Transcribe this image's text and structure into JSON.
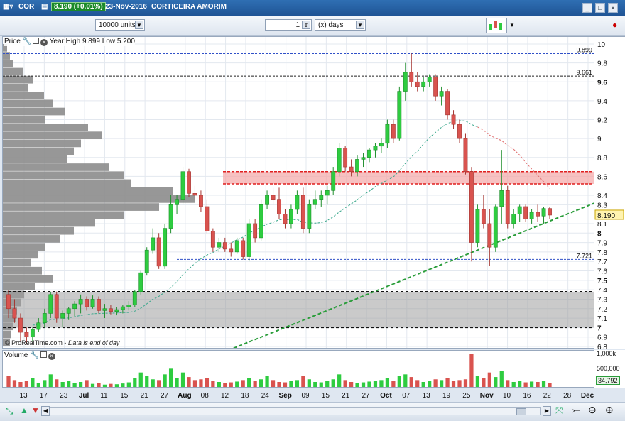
{
  "window": {
    "symbol": "COR",
    "price_change": "8.190 (+0.01%)",
    "date": "23-Nov-2016",
    "name": "CORTICEIRA AMORIM"
  },
  "toolbar": {
    "units": "10000 units",
    "period_count": "1",
    "period_unit": "(x) days"
  },
  "price_panel": {
    "label": "Price",
    "info": "Year:High 9.899 Low 5.200",
    "copyright": "© ProRealTime.com",
    "note": "Data is end of day",
    "last_price": "8.190",
    "level_high": "9.899",
    "level_mid": "9.661",
    "level_low": "7.721"
  },
  "volume_panel": {
    "label": "Volume",
    "last_volume": "34,792",
    "ticks": [
      "1,000k",
      "500,000"
    ]
  },
  "colors": {
    "up": "#2ecc40",
    "down": "#d9534f",
    "trendline": "#2a9d3a",
    "resistance_zone": "#f4a6a6",
    "support_zone": "#9e9e9e"
  },
  "chart_data": {
    "type": "candlestick",
    "ylim": [
      6.8,
      10.0
    ],
    "y_ticks": [
      "10",
      "9.8",
      "9.6",
      "9.4",
      "9.2",
      "9",
      "8.8",
      "8.6",
      "8.4",
      "8.3",
      "8.1",
      "8",
      "7.9",
      "7.8",
      "7.7",
      "7.6",
      "7.5",
      "7.4",
      "7.3",
      "7.2",
      "7.1",
      "7",
      "6.9",
      "6.8"
    ],
    "x_ticks": [
      "13",
      "17",
      "23",
      "Jul",
      "11",
      "15",
      "21",
      "27",
      "Aug",
      "08",
      "12",
      "18",
      "24",
      "Sep",
      "09",
      "15",
      "21",
      "27",
      "Oct",
      "07",
      "13",
      "19",
      "25",
      "Nov",
      "10",
      "16",
      "22",
      "28",
      "Dec"
    ],
    "horizontal_levels": [
      9.899,
      9.661,
      7.721,
      7.0,
      7.38
    ],
    "zones": [
      {
        "from": 8.52,
        "to": 8.65,
        "color": "resistance"
      },
      {
        "from": 7.0,
        "to": 7.38,
        "color": "support"
      }
    ],
    "candles": [
      {
        "o": 7.35,
        "h": 7.4,
        "l": 7.1,
        "c": 7.2
      },
      {
        "o": 7.2,
        "h": 7.3,
        "l": 7.05,
        "c": 7.1
      },
      {
        "o": 7.1,
        "h": 7.15,
        "l": 6.85,
        "c": 6.95
      },
      {
        "o": 6.95,
        "h": 7.0,
        "l": 6.82,
        "c": 6.9
      },
      {
        "o": 6.9,
        "h": 7.0,
        "l": 6.85,
        "c": 6.98
      },
      {
        "o": 6.98,
        "h": 7.1,
        "l": 6.95,
        "c": 7.05
      },
      {
        "o": 7.05,
        "h": 7.2,
        "l": 7.0,
        "c": 7.15
      },
      {
        "o": 7.15,
        "h": 7.38,
        "l": 7.1,
        "c": 7.35
      },
      {
        "o": 7.35,
        "h": 7.38,
        "l": 7.05,
        "c": 7.1
      },
      {
        "o": 7.1,
        "h": 7.18,
        "l": 7.0,
        "c": 7.15
      },
      {
        "o": 7.15,
        "h": 7.22,
        "l": 7.08,
        "c": 7.2
      },
      {
        "o": 7.2,
        "h": 7.28,
        "l": 7.12,
        "c": 7.25
      },
      {
        "o": 7.25,
        "h": 7.35,
        "l": 7.15,
        "c": 7.3
      },
      {
        "o": 7.3,
        "h": 7.33,
        "l": 7.18,
        "c": 7.22
      },
      {
        "o": 7.22,
        "h": 7.34,
        "l": 7.2,
        "c": 7.3
      },
      {
        "o": 7.3,
        "h": 7.33,
        "l": 7.15,
        "c": 7.18
      },
      {
        "o": 7.18,
        "h": 7.25,
        "l": 7.1,
        "c": 7.2
      },
      {
        "o": 7.2,
        "h": 7.24,
        "l": 7.14,
        "c": 7.17
      },
      {
        "o": 7.17,
        "h": 7.22,
        "l": 7.13,
        "c": 7.19
      },
      {
        "o": 7.19,
        "h": 7.24,
        "l": 7.15,
        "c": 7.22
      },
      {
        "o": 7.22,
        "h": 7.28,
        "l": 7.18,
        "c": 7.24
      },
      {
        "o": 7.24,
        "h": 7.4,
        "l": 7.22,
        "c": 7.38
      },
      {
        "o": 7.38,
        "h": 7.6,
        "l": 7.35,
        "c": 7.58
      },
      {
        "o": 7.58,
        "h": 7.85,
        "l": 7.55,
        "c": 7.82
      },
      {
        "o": 7.82,
        "h": 8.05,
        "l": 7.78,
        "c": 7.95
      },
      {
        "o": 7.95,
        "h": 8.0,
        "l": 7.62,
        "c": 7.65
      },
      {
        "o": 7.65,
        "h": 8.1,
        "l": 7.62,
        "c": 8.05
      },
      {
        "o": 8.05,
        "h": 8.4,
        "l": 8.0,
        "c": 8.3
      },
      {
        "o": 8.3,
        "h": 8.4,
        "l": 8.2,
        "c": 8.35
      },
      {
        "o": 8.35,
        "h": 8.7,
        "l": 8.3,
        "c": 8.65
      },
      {
        "o": 8.65,
        "h": 8.68,
        "l": 8.38,
        "c": 8.42
      },
      {
        "o": 8.42,
        "h": 8.5,
        "l": 8.35,
        "c": 8.4
      },
      {
        "o": 8.4,
        "h": 8.45,
        "l": 8.22,
        "c": 8.28
      },
      {
        "o": 8.28,
        "h": 8.35,
        "l": 8.0,
        "c": 8.02
      },
      {
        "o": 8.02,
        "h": 8.05,
        "l": 7.8,
        "c": 7.85
      },
      {
        "o": 7.85,
        "h": 7.95,
        "l": 7.8,
        "c": 7.9
      },
      {
        "o": 7.9,
        "h": 7.95,
        "l": 7.8,
        "c": 7.83
      },
      {
        "o": 7.83,
        "h": 7.9,
        "l": 7.75,
        "c": 7.8
      },
      {
        "o": 7.8,
        "h": 7.95,
        "l": 7.78,
        "c": 7.92
      },
      {
        "o": 7.92,
        "h": 7.95,
        "l": 7.72,
        "c": 7.75
      },
      {
        "o": 7.75,
        "h": 8.15,
        "l": 7.7,
        "c": 8.1
      },
      {
        "o": 8.1,
        "h": 8.15,
        "l": 7.9,
        "c": 7.95
      },
      {
        "o": 7.95,
        "h": 8.35,
        "l": 7.92,
        "c": 8.3
      },
      {
        "o": 8.3,
        "h": 8.45,
        "l": 8.25,
        "c": 8.4
      },
      {
        "o": 8.4,
        "h": 8.48,
        "l": 8.3,
        "c": 8.35
      },
      {
        "o": 8.35,
        "h": 8.48,
        "l": 8.15,
        "c": 8.2
      },
      {
        "o": 8.2,
        "h": 8.25,
        "l": 8.05,
        "c": 8.1
      },
      {
        "o": 8.1,
        "h": 8.3,
        "l": 8.05,
        "c": 8.25
      },
      {
        "o": 8.25,
        "h": 8.45,
        "l": 8.2,
        "c": 8.4
      },
      {
        "o": 8.4,
        "h": 8.48,
        "l": 8.0,
        "c": 8.05
      },
      {
        "o": 8.05,
        "h": 8.35,
        "l": 8.0,
        "c": 8.3
      },
      {
        "o": 8.3,
        "h": 8.45,
        "l": 8.25,
        "c": 8.35
      },
      {
        "o": 8.35,
        "h": 8.45,
        "l": 8.28,
        "c": 8.4
      },
      {
        "o": 8.4,
        "h": 8.5,
        "l": 8.3,
        "c": 8.45
      },
      {
        "o": 8.45,
        "h": 8.7,
        "l": 8.4,
        "c": 8.65
      },
      {
        "o": 8.65,
        "h": 8.95,
        "l": 8.6,
        "c": 8.9
      },
      {
        "o": 8.9,
        "h": 8.92,
        "l": 8.65,
        "c": 8.7
      },
      {
        "o": 8.7,
        "h": 8.78,
        "l": 8.6,
        "c": 8.65
      },
      {
        "o": 8.65,
        "h": 8.82,
        "l": 8.6,
        "c": 8.78
      },
      {
        "o": 8.78,
        "h": 8.85,
        "l": 8.7,
        "c": 8.8
      },
      {
        "o": 8.8,
        "h": 8.9,
        "l": 8.75,
        "c": 8.88
      },
      {
        "o": 8.88,
        "h": 8.95,
        "l": 8.8,
        "c": 8.92
      },
      {
        "o": 8.92,
        "h": 9.0,
        "l": 8.85,
        "c": 8.95
      },
      {
        "o": 8.95,
        "h": 9.2,
        "l": 8.9,
        "c": 9.15
      },
      {
        "o": 9.15,
        "h": 9.2,
        "l": 8.95,
        "c": 9.0
      },
      {
        "o": 9.0,
        "h": 9.55,
        "l": 8.98,
        "c": 9.5
      },
      {
        "o": 9.5,
        "h": 9.8,
        "l": 9.4,
        "c": 9.7
      },
      {
        "o": 9.7,
        "h": 9.9,
        "l": 9.55,
        "c": 9.6
      },
      {
        "o": 9.6,
        "h": 9.7,
        "l": 9.5,
        "c": 9.55
      },
      {
        "o": 9.55,
        "h": 9.65,
        "l": 9.5,
        "c": 9.6
      },
      {
        "o": 9.6,
        "h": 9.68,
        "l": 9.55,
        "c": 9.65
      },
      {
        "o": 9.65,
        "h": 9.68,
        "l": 9.4,
        "c": 9.45
      },
      {
        "o": 9.45,
        "h": 9.55,
        "l": 9.35,
        "c": 9.5
      },
      {
        "o": 9.5,
        "h": 9.52,
        "l": 9.2,
        "c": 9.25
      },
      {
        "o": 9.25,
        "h": 9.3,
        "l": 9.1,
        "c": 9.15
      },
      {
        "o": 9.15,
        "h": 9.2,
        "l": 8.95,
        "c": 9.0
      },
      {
        "o": 9.0,
        "h": 9.05,
        "l": 8.62,
        "c": 8.65
      },
      {
        "o": 8.65,
        "h": 8.7,
        "l": 7.7,
        "c": 7.9
      },
      {
        "o": 7.9,
        "h": 8.3,
        "l": 7.85,
        "c": 8.25
      },
      {
        "o": 8.25,
        "h": 8.4,
        "l": 8.05,
        "c": 8.1
      },
      {
        "o": 8.1,
        "h": 8.25,
        "l": 7.65,
        "c": 7.85
      },
      {
        "o": 7.85,
        "h": 8.3,
        "l": 7.8,
        "c": 8.28
      },
      {
        "o": 8.28,
        "h": 8.88,
        "l": 8.1,
        "c": 8.45
      },
      {
        "o": 8.45,
        "h": 8.5,
        "l": 8.05,
        "c": 8.1
      },
      {
        "o": 8.1,
        "h": 8.25,
        "l": 8.05,
        "c": 8.2
      },
      {
        "o": 8.2,
        "h": 8.3,
        "l": 8.12,
        "c": 8.28
      },
      {
        "o": 8.28,
        "h": 8.3,
        "l": 8.12,
        "c": 8.15
      },
      {
        "o": 8.15,
        "h": 8.25,
        "l": 8.1,
        "c": 8.22
      },
      {
        "o": 8.22,
        "h": 8.3,
        "l": 8.12,
        "c": 8.18
      },
      {
        "o": 8.18,
        "h": 8.28,
        "l": 8.1,
        "c": 8.26
      },
      {
        "o": 8.26,
        "h": 8.28,
        "l": 8.15,
        "c": 8.19
      }
    ],
    "volume": [
      30,
      20,
      15,
      18,
      25,
      12,
      20,
      35,
      22,
      15,
      18,
      12,
      15,
      20,
      10,
      12,
      8,
      10,
      9,
      11,
      14,
      25,
      40,
      30,
      22,
      20,
      35,
      50,
      25,
      40,
      28,
      20,
      22,
      25,
      18,
      15,
      12,
      14,
      16,
      20,
      25,
      18,
      22,
      30,
      20,
      15,
      14,
      18,
      20,
      30,
      22,
      15,
      14,
      18,
      22,
      35,
      20,
      15,
      12,
      14,
      16,
      18,
      20,
      25,
      18,
      30,
      35,
      28,
      20,
      15,
      18,
      22,
      20,
      25,
      18,
      20,
      22,
      90,
      30,
      25,
      40,
      28,
      45,
      20,
      15,
      18,
      14,
      16,
      15,
      18,
      12
    ],
    "trendline": {
      "from": [
        0,
        6.58
      ],
      "to": [
        90,
        8.28
      ]
    }
  }
}
